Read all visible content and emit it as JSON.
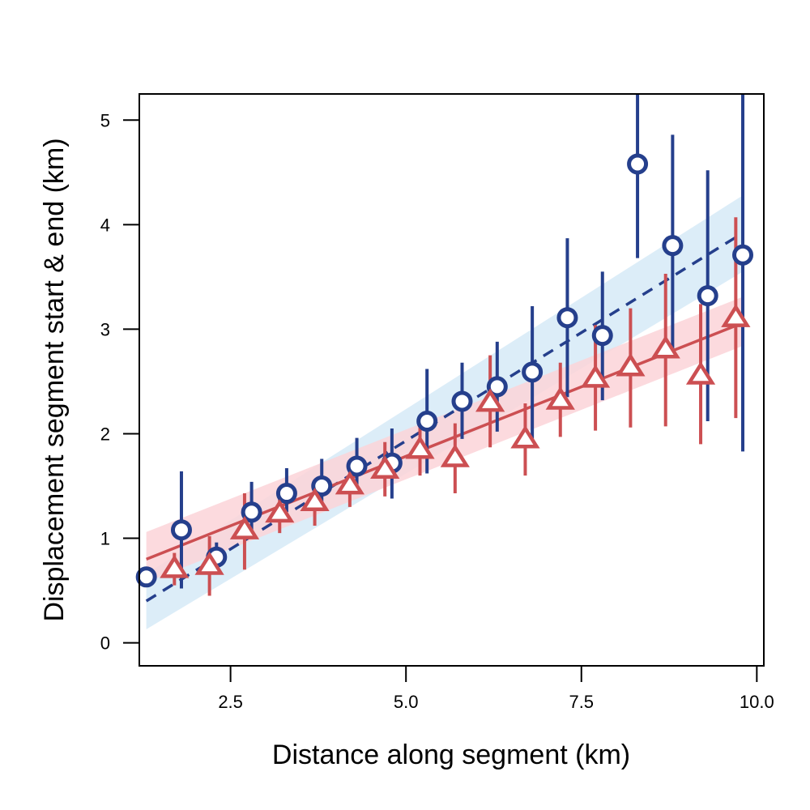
{
  "chart_data": {
    "type": "scatter",
    "title": "",
    "xlabel": "Distance along segment (km)",
    "ylabel": "Displacement segment start & end (km)",
    "xlim": [
      1.2,
      10.1
    ],
    "ylim": [
      -0.22,
      5.25
    ],
    "x_ticks": [
      2.5,
      5.0,
      7.5,
      10.0
    ],
    "x_tick_labels": [
      "2.5",
      "5.0",
      "7.5",
      "10.0"
    ],
    "y_ticks": [
      0,
      1,
      2,
      3,
      4,
      5
    ],
    "y_tick_labels": [
      "0",
      "1",
      "2",
      "3",
      "4",
      "5"
    ],
    "grid": false,
    "legend": "none",
    "series": [
      {
        "marker": "circle",
        "color": "#253f8c",
        "fit_line": "dashed",
        "band_color": "#d6eaf7",
        "points": [
          {
            "x": 1.3,
            "y": 0.63,
            "lo": 0.58,
            "hi": 0.7
          },
          {
            "x": 1.8,
            "y": 1.08,
            "lo": 0.52,
            "hi": 1.64
          },
          {
            "x": 2.3,
            "y": 0.82,
            "lo": 0.68,
            "hi": 0.96
          },
          {
            "x": 2.8,
            "y": 1.25,
            "lo": 1.08,
            "hi": 1.54
          },
          {
            "x": 3.3,
            "y": 1.43,
            "lo": 1.25,
            "hi": 1.67
          },
          {
            "x": 3.8,
            "y": 1.5,
            "lo": 1.32,
            "hi": 1.76
          },
          {
            "x": 4.3,
            "y": 1.69,
            "lo": 1.48,
            "hi": 1.96
          },
          {
            "x": 4.8,
            "y": 1.72,
            "lo": 1.38,
            "hi": 2.05
          },
          {
            "x": 5.3,
            "y": 2.12,
            "lo": 1.62,
            "hi": 2.62
          },
          {
            "x": 5.8,
            "y": 2.31,
            "lo": 1.95,
            "hi": 2.68
          },
          {
            "x": 6.3,
            "y": 2.45,
            "lo": 2.02,
            "hi": 2.88
          },
          {
            "x": 6.8,
            "y": 2.59,
            "lo": 1.95,
            "hi": 3.22
          },
          {
            "x": 7.3,
            "y": 3.11,
            "lo": 2.35,
            "hi": 3.87
          },
          {
            "x": 7.8,
            "y": 2.94,
            "lo": 2.32,
            "hi": 3.55
          },
          {
            "x": 8.3,
            "y": 4.58,
            "lo": 3.68,
            "hi": 5.25
          },
          {
            "x": 8.8,
            "y": 3.8,
            "lo": 2.73,
            "hi": 4.86
          },
          {
            "x": 9.3,
            "y": 3.32,
            "lo": 2.12,
            "hi": 4.52
          },
          {
            "x": 9.8,
            "y": 3.71,
            "lo": 1.83,
            "hi": 5.25
          }
        ],
        "fit": {
          "x0": 1.3,
          "y0": 0.4,
          "x1": 9.8,
          "y1": 3.92
        },
        "band": {
          "x": [
            1.3,
            9.8
          ],
          "lower": [
            0.13,
            3.55
          ],
          "upper": [
            0.66,
            4.28
          ]
        }
      },
      {
        "marker": "triangle",
        "color": "#cc4f52",
        "fit_line": "solid",
        "band_color": "#fcd3d8",
        "points": [
          {
            "x": 1.7,
            "y": 0.71,
            "lo": 0.55,
            "hi": 0.86
          },
          {
            "x": 2.2,
            "y": 0.74,
            "lo": 0.45,
            "hi": 1.02
          },
          {
            "x": 2.7,
            "y": 1.08,
            "lo": 0.7,
            "hi": 1.43
          },
          {
            "x": 3.2,
            "y": 1.24,
            "lo": 1.05,
            "hi": 1.4
          },
          {
            "x": 3.7,
            "y": 1.35,
            "lo": 1.12,
            "hi": 1.56
          },
          {
            "x": 4.2,
            "y": 1.51,
            "lo": 1.3,
            "hi": 1.72
          },
          {
            "x": 4.7,
            "y": 1.66,
            "lo": 1.4,
            "hi": 1.92
          },
          {
            "x": 5.2,
            "y": 1.85,
            "lo": 1.6,
            "hi": 2.1
          },
          {
            "x": 5.7,
            "y": 1.77,
            "lo": 1.43,
            "hi": 2.1
          },
          {
            "x": 6.2,
            "y": 2.3,
            "lo": 1.87,
            "hi": 2.75
          },
          {
            "x": 6.7,
            "y": 1.95,
            "lo": 1.6,
            "hi": 2.29
          },
          {
            "x": 7.2,
            "y": 2.32,
            "lo": 1.97,
            "hi": 2.68
          },
          {
            "x": 7.7,
            "y": 2.53,
            "lo": 2.03,
            "hi": 3.04
          },
          {
            "x": 8.2,
            "y": 2.64,
            "lo": 2.06,
            "hi": 3.2
          },
          {
            "x": 8.7,
            "y": 2.81,
            "lo": 2.07,
            "hi": 3.53
          },
          {
            "x": 9.2,
            "y": 2.56,
            "lo": 1.9,
            "hi": 3.24
          },
          {
            "x": 9.7,
            "y": 3.11,
            "lo": 2.15,
            "hi": 4.07
          }
        ],
        "fit": {
          "x0": 1.3,
          "y0": 0.8,
          "x1": 9.8,
          "y1": 3.06
        },
        "band": {
          "x": [
            1.3,
            9.8
          ],
          "lower": [
            0.58,
            2.84
          ],
          "upper": [
            1.06,
            3.31
          ]
        }
      }
    ]
  }
}
